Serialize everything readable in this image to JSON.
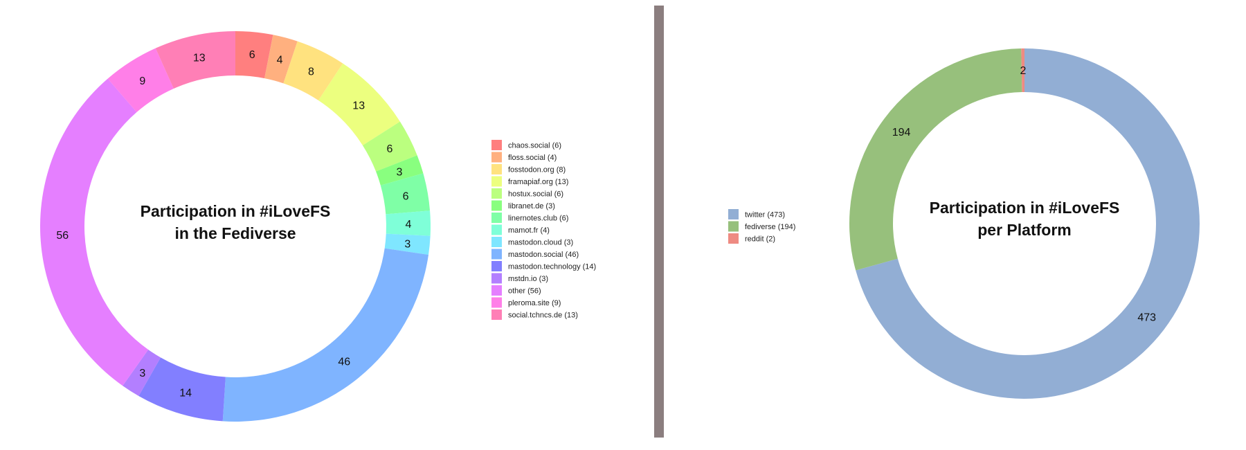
{
  "chart_data": [
    {
      "type": "pie",
      "title_lines": [
        "Participation in #iLoveFS",
        "in the Fediverse"
      ],
      "legend_position": "right",
      "slices": [
        {
          "label": "chaos.social",
          "legend": "chaos.social (6)",
          "value": 6,
          "value_label": "6",
          "color": "#ff7f7f"
        },
        {
          "label": "floss.social",
          "legend": "floss.social (4)",
          "value": 4,
          "value_label": "4",
          "color": "#ffb07f"
        },
        {
          "label": "fosstodon.org",
          "legend": "fosstodon.org (8)",
          "value": 8,
          "value_label": "8",
          "color": "#ffe27f"
        },
        {
          "label": "framapiaf.org",
          "legend": "framapiaf.org (13)",
          "value": 13,
          "value_label": "13",
          "color": "#ecff7f"
        },
        {
          "label": "hostux.social",
          "legend": "hostux.social (6)",
          "value": 6,
          "value_label": "6",
          "color": "#bbff7f"
        },
        {
          "label": "libranet.de",
          "legend": "libranet.de (3)",
          "value": 3,
          "value_label": "3",
          "color": "#89ff7f"
        },
        {
          "label": "linernotes.club",
          "legend": "linernotes.club (6)",
          "value": 6,
          "value_label": "6",
          "color": "#7fffa6"
        },
        {
          "label": "mamot.fr",
          "legend": "mamot.fr (4)",
          "value": 4,
          "value_label": "4",
          "color": "#7fffd8"
        },
        {
          "label": "mastodon.cloud",
          "legend": "mastodon.cloud (3)",
          "value": 3,
          "value_label": "3",
          "color": "#7fe6ff"
        },
        {
          "label": "mastodon.social",
          "legend": "mastodon.social (46)",
          "value": 46,
          "value_label": "46",
          "color": "#7fb4ff"
        },
        {
          "label": "mastodon.technology",
          "legend": "mastodon.technology (14)",
          "value": 14,
          "value_label": "14",
          "color": "#827fff"
        },
        {
          "label": "mstdn.io",
          "legend": "mstdn.io (3)",
          "value": 3,
          "value_label": "3",
          "color": "#b37fff"
        },
        {
          "label": "other",
          "legend": "other (56)",
          "value": 56,
          "value_label": "56",
          "color": "#e57fff"
        },
        {
          "label": "pleroma.site",
          "legend": "pleroma.site (9)",
          "value": 9,
          "value_label": "9",
          "color": "#ff7fe8"
        },
        {
          "label": "social.tchncs.de",
          "legend": "social.tchncs.de (13)",
          "value": 13,
          "value_label": "13",
          "color": "#ff7fb6"
        }
      ]
    },
    {
      "type": "pie",
      "title_lines": [
        "Participation in #iLoveFS",
        "per Platform"
      ],
      "legend_position": "left",
      "slices": [
        {
          "label": "twitter",
          "legend": "twitter (473)",
          "value": 473,
          "value_label": "473",
          "color": "#92aed4"
        },
        {
          "label": "fediverse",
          "legend": "fediverse (194)",
          "value": 194,
          "value_label": "194",
          "color": "#97c07c"
        },
        {
          "label": "reddit",
          "legend": "reddit (2)",
          "value": 2,
          "value_label": "2",
          "color": "#ee8b82"
        }
      ]
    }
  ],
  "divider_color": "#8b7e7f"
}
